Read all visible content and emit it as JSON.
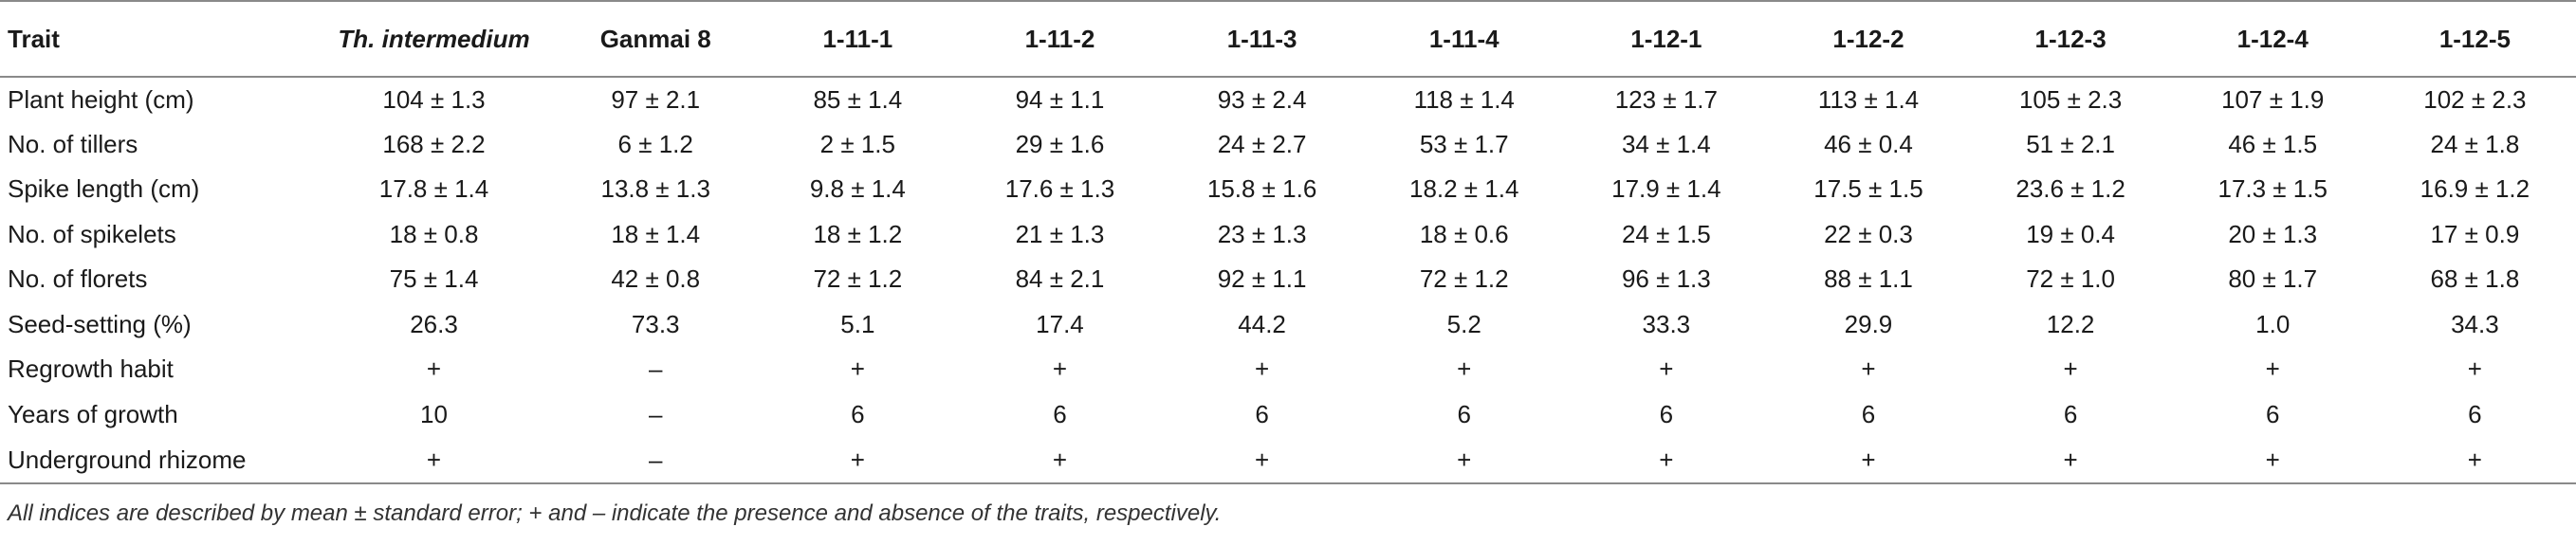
{
  "table": {
    "headers": [
      "Trait",
      "Th. intermedium",
      "Ganmai 8",
      "1-11-1",
      "1-11-2",
      "1-11-3",
      "1-11-4",
      "1-12-1",
      "1-12-2",
      "1-12-3",
      "1-12-4",
      "1-12-5"
    ],
    "rows": [
      [
        "Plant height (cm)",
        "104 ± 1.3",
        "97 ± 2.1",
        "85 ± 1.4",
        "94 ± 1.1",
        "93 ± 2.4",
        "118 ± 1.4",
        "123 ± 1.7",
        "113 ± 1.4",
        "105 ± 2.3",
        "107 ± 1.9",
        "102 ± 2.3"
      ],
      [
        "No. of tillers",
        "168 ± 2.2",
        "6 ± 1.2",
        "2 ± 1.5",
        "29 ± 1.6",
        "24 ± 2.7",
        "53 ± 1.7",
        "34 ± 1.4",
        "46 ± 0.4",
        "51 ± 2.1",
        "46 ± 1.5",
        "24 ± 1.8"
      ],
      [
        "Spike length (cm)",
        "17.8 ± 1.4",
        "13.8 ± 1.3",
        "9.8 ± 1.4",
        "17.6 ± 1.3",
        "15.8 ± 1.6",
        "18.2 ± 1.4",
        "17.9 ± 1.4",
        "17.5 ± 1.5",
        "23.6 ± 1.2",
        "17.3 ± 1.5",
        "16.9 ± 1.2"
      ],
      [
        "No. of spikelets",
        "18 ± 0.8",
        "18 ± 1.4",
        "18 ± 1.2",
        "21 ± 1.3",
        "23 ± 1.3",
        "18 ± 0.6",
        "24 ± 1.5",
        "22 ± 0.3",
        "19 ± 0.4",
        "20 ± 1.3",
        "17 ± 0.9"
      ],
      [
        "No. of florets",
        "75 ± 1.4",
        "42 ± 0.8",
        "72 ± 1.2",
        "84 ± 2.1",
        "92 ± 1.1",
        "72 ± 1.2",
        "96 ± 1.3",
        "88 ± 1.1",
        "72 ± 1.0",
        "80 ± 1.7",
        "68 ± 1.8"
      ],
      [
        "Seed-setting (%)",
        "26.3",
        "73.3",
        "5.1",
        "17.4",
        "44.2",
        "5.2",
        "33.3",
        "29.9",
        "12.2",
        "1.0",
        "34.3"
      ],
      [
        "Regrowth habit",
        "+",
        "–",
        "+",
        "+",
        "+",
        "+",
        "+",
        "+",
        "+",
        "+",
        "+"
      ],
      [
        "Years of growth",
        "10",
        "–",
        "6",
        "6",
        "6",
        "6",
        "6",
        "6",
        "6",
        "6",
        "6"
      ],
      [
        "Underground rhizome",
        "+",
        "–",
        "+",
        "+",
        "+",
        "+",
        "+",
        "+",
        "+",
        "+",
        "+"
      ]
    ]
  },
  "footnote": "All indices are described by mean ± standard error; + and – indicate the presence and absence of the traits, respectively."
}
